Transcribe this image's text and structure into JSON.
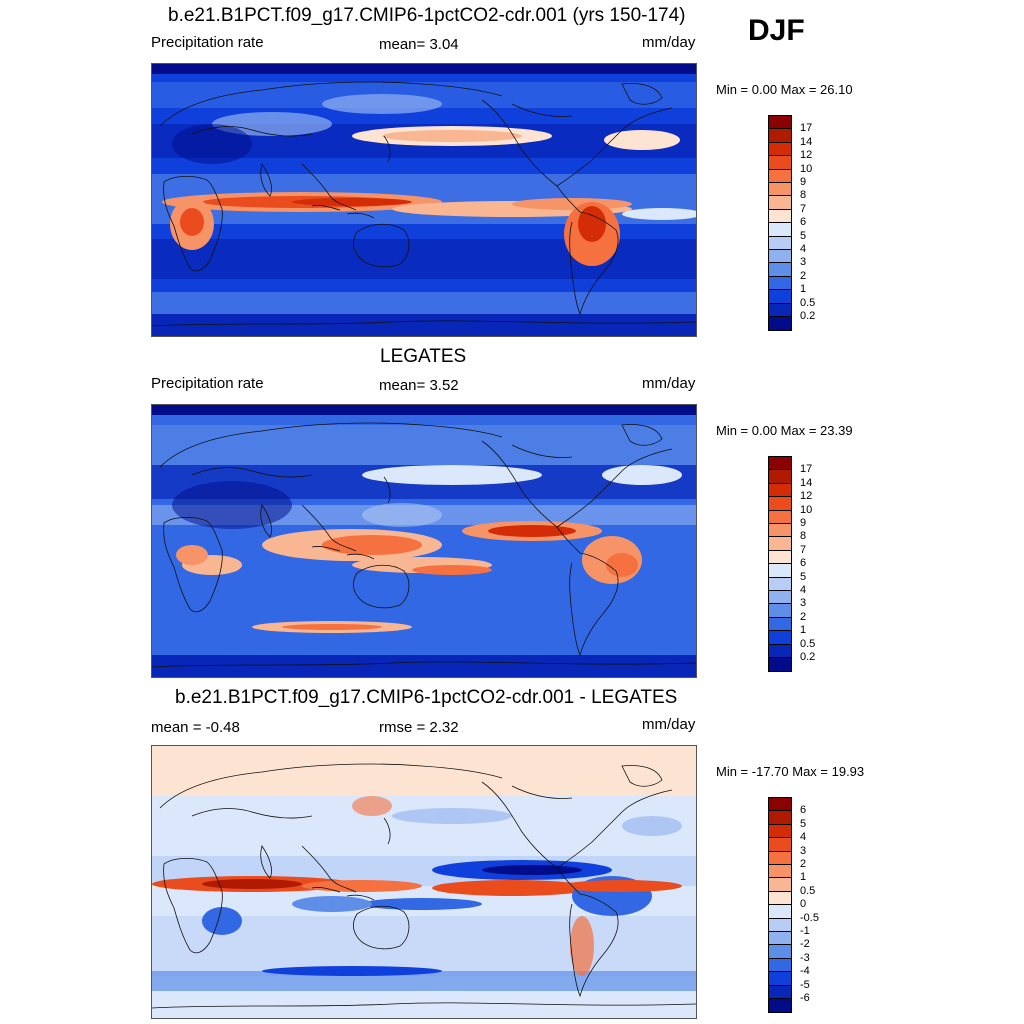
{
  "season": "DJF",
  "panels": [
    {
      "title": "b.e21.B1PCT.f09_g17.CMIP6-1pctCO2-cdr.001 (yrs 150-174)",
      "left_label": "Precipitation rate",
      "center_label": "mean=   3.04",
      "right_label": "mm/day",
      "minmax": "Min =    0.00 Max =  26.10",
      "field": "model"
    },
    {
      "title": "LEGATES",
      "left_label": "Precipitation rate",
      "center_label": "mean=   3.52",
      "right_label": "mm/day",
      "minmax": "Min =    0.00 Max =  23.39",
      "field": "obs"
    },
    {
      "title": "b.e21.B1PCT.f09_g17.CMIP6-1pctCO2-cdr.001 - LEGATES",
      "left_label": "mean =  -0.48",
      "center_label": "rmse =   2.32",
      "right_label": "mm/day",
      "minmax": "Min = -17.70 Max =  19.93",
      "field": "diff"
    }
  ],
  "colorbar_precip": {
    "labels": [
      "17",
      "14",
      "12",
      "10",
      "9",
      "8",
      "7",
      "6",
      "5",
      "4",
      "3",
      "2",
      "1",
      "0.5",
      "0.2"
    ],
    "colors": [
      "#8b0000",
      "#b01a00",
      "#d42c07",
      "#eb4c1e",
      "#f5713f",
      "#f79467",
      "#f9b692",
      "#fde4d2",
      "#dbe7fa",
      "#b7cdf6",
      "#8fb1f0",
      "#5e8ee8",
      "#3368e4",
      "#1040dc",
      "#0826b8",
      "#000c8a"
    ]
  },
  "colorbar_diff": {
    "labels": [
      "6",
      "5",
      "4",
      "3",
      "2",
      "1",
      "0.5",
      "0",
      "-0.5",
      "-1",
      "-2",
      "-3",
      "-4",
      "-5",
      "-6"
    ],
    "colors": [
      "#8b0000",
      "#b01a00",
      "#d42c07",
      "#eb4c1e",
      "#f5713f",
      "#f79467",
      "#f9b692",
      "#fde4d2",
      "#dbe7fa",
      "#b7cdf6",
      "#8fb1f0",
      "#5e8ee8",
      "#3368e4",
      "#1040dc",
      "#0826b8",
      "#000c8a"
    ]
  }
}
